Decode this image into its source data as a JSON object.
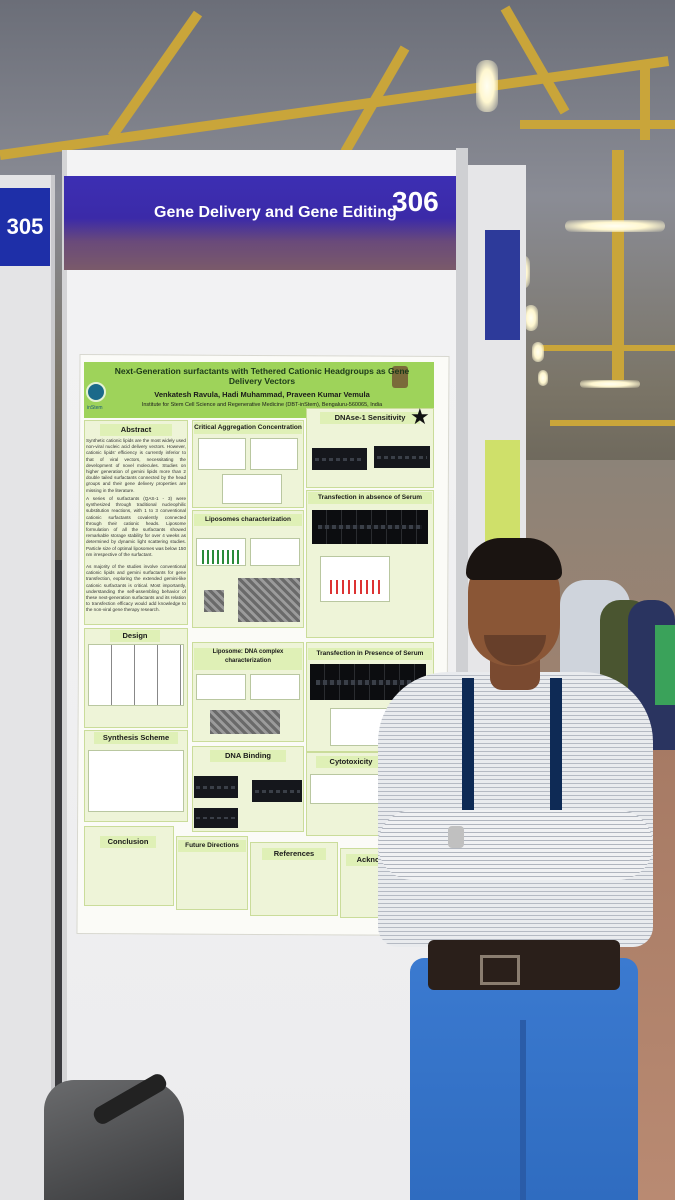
{
  "booth_left": {
    "number": "305"
  },
  "booth": {
    "category": "Gene Delivery and Gene Editing",
    "number": "306"
  },
  "poster": {
    "title": "Next-Generation surfactants with Tethered Cationic Headgroups as Gene Delivery Vectors",
    "authors": "Venkatesh Ravula, Hadi Muhammad, Praveen Kumar Vemula",
    "institute": "Institute for Stem Cell Science and Regenerative Medicine (DBT-inStem), Bengaluru-560065, India",
    "logo_text": "inStem",
    "sections": {
      "abstract": "Abstract",
      "cac": "Critical Aggregation Concentration",
      "dnase": "DNAse-1 Sensitivity",
      "transfection_no_serum": "Transfection in absence of Serum",
      "liposomes": "Liposomes characterization",
      "design": "Design",
      "liposome_dna": "Liposome: DNA complex characterization",
      "transfection_serum": "Transfection in Presence of Serum",
      "synthesis": "Synthesis Scheme",
      "dna_binding": "DNA Binding",
      "cytotoxicity": "Cytotoxicity",
      "conclusion": "Conclusion",
      "future": "Future Directions",
      "references": "References",
      "acknowledgement": "Acknow"
    },
    "abstract_text": "Synthetic cationic lipids are the most widely used non-viral nucleic acid delivery vectors. However, cationic lipids' efficiency is currently inferior to that of viral vectors, necessitating the development of novel molecules. Studies on higher generation of gemini lipids more than 2 double tailed surfactants connected by the head groups and their gene delivery properties are missing in the literature.",
    "abstract_text_2": "A series of surfactants (QAS-1 - 3) were synthesized through traditional nucleophilic substitution reactions, with 1 to 3 conventional cationic surfactants covalently connected through their cationic heads. Liposome formulation of all the surfactants showed remarkable storage stability for over 4 weeks as determined by dynamic light scattering studies. Particle size of optimal liposomes was below 150 nm irrespective of the surfactant.",
    "abstract_text_3": "As majority of the studies involve conventional cationic lipids and gemini surfactants for gene transfection, exploring the extended gemini-like cationic surfactants is critical. Most importantly, understanding the self-assembling behavior of these next-generation surfactants and its relation to transfection efficacy would add knowledge to the non-viral gene therapy research."
  }
}
